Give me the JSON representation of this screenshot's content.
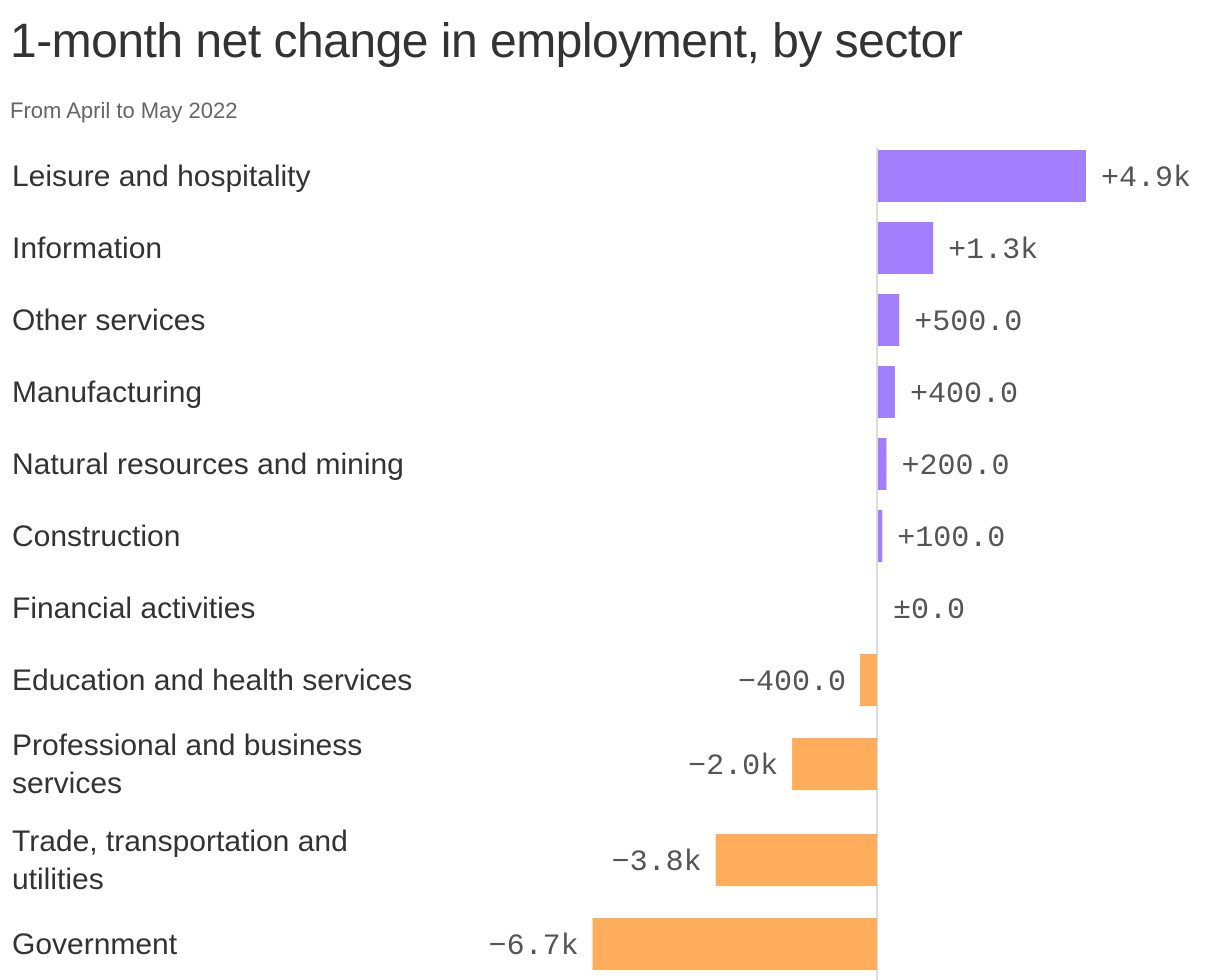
{
  "chart_data": {
    "type": "bar",
    "orientation": "horizontal",
    "title": "1-month net change in employment, by sector",
    "subtitle": "From April to May 2022",
    "categories": [
      "Leisure and hospitality",
      "Information",
      "Other services",
      "Manufacturing",
      "Natural resources and mining",
      "Construction",
      "Financial activities",
      "Education and health services",
      "Professional and business services",
      "Trade, transportation and utilities",
      "Government"
    ],
    "values": [
      4900,
      1300,
      500,
      400,
      200,
      100,
      0,
      -400,
      -2000,
      -3800,
      -6700
    ],
    "value_labels": [
      "+4.9k",
      "+1.3k",
      "+500.0",
      "+400.0",
      "+200.0",
      "+100.0",
      "±0.0",
      "−400.0",
      "−2.0k",
      "−3.8k",
      "−6.7k"
    ],
    "colors": {
      "positive": "#a17ffd",
      "negative": "#fdad5c",
      "axis": "#dddddd"
    },
    "grid": false,
    "legend": "none"
  }
}
